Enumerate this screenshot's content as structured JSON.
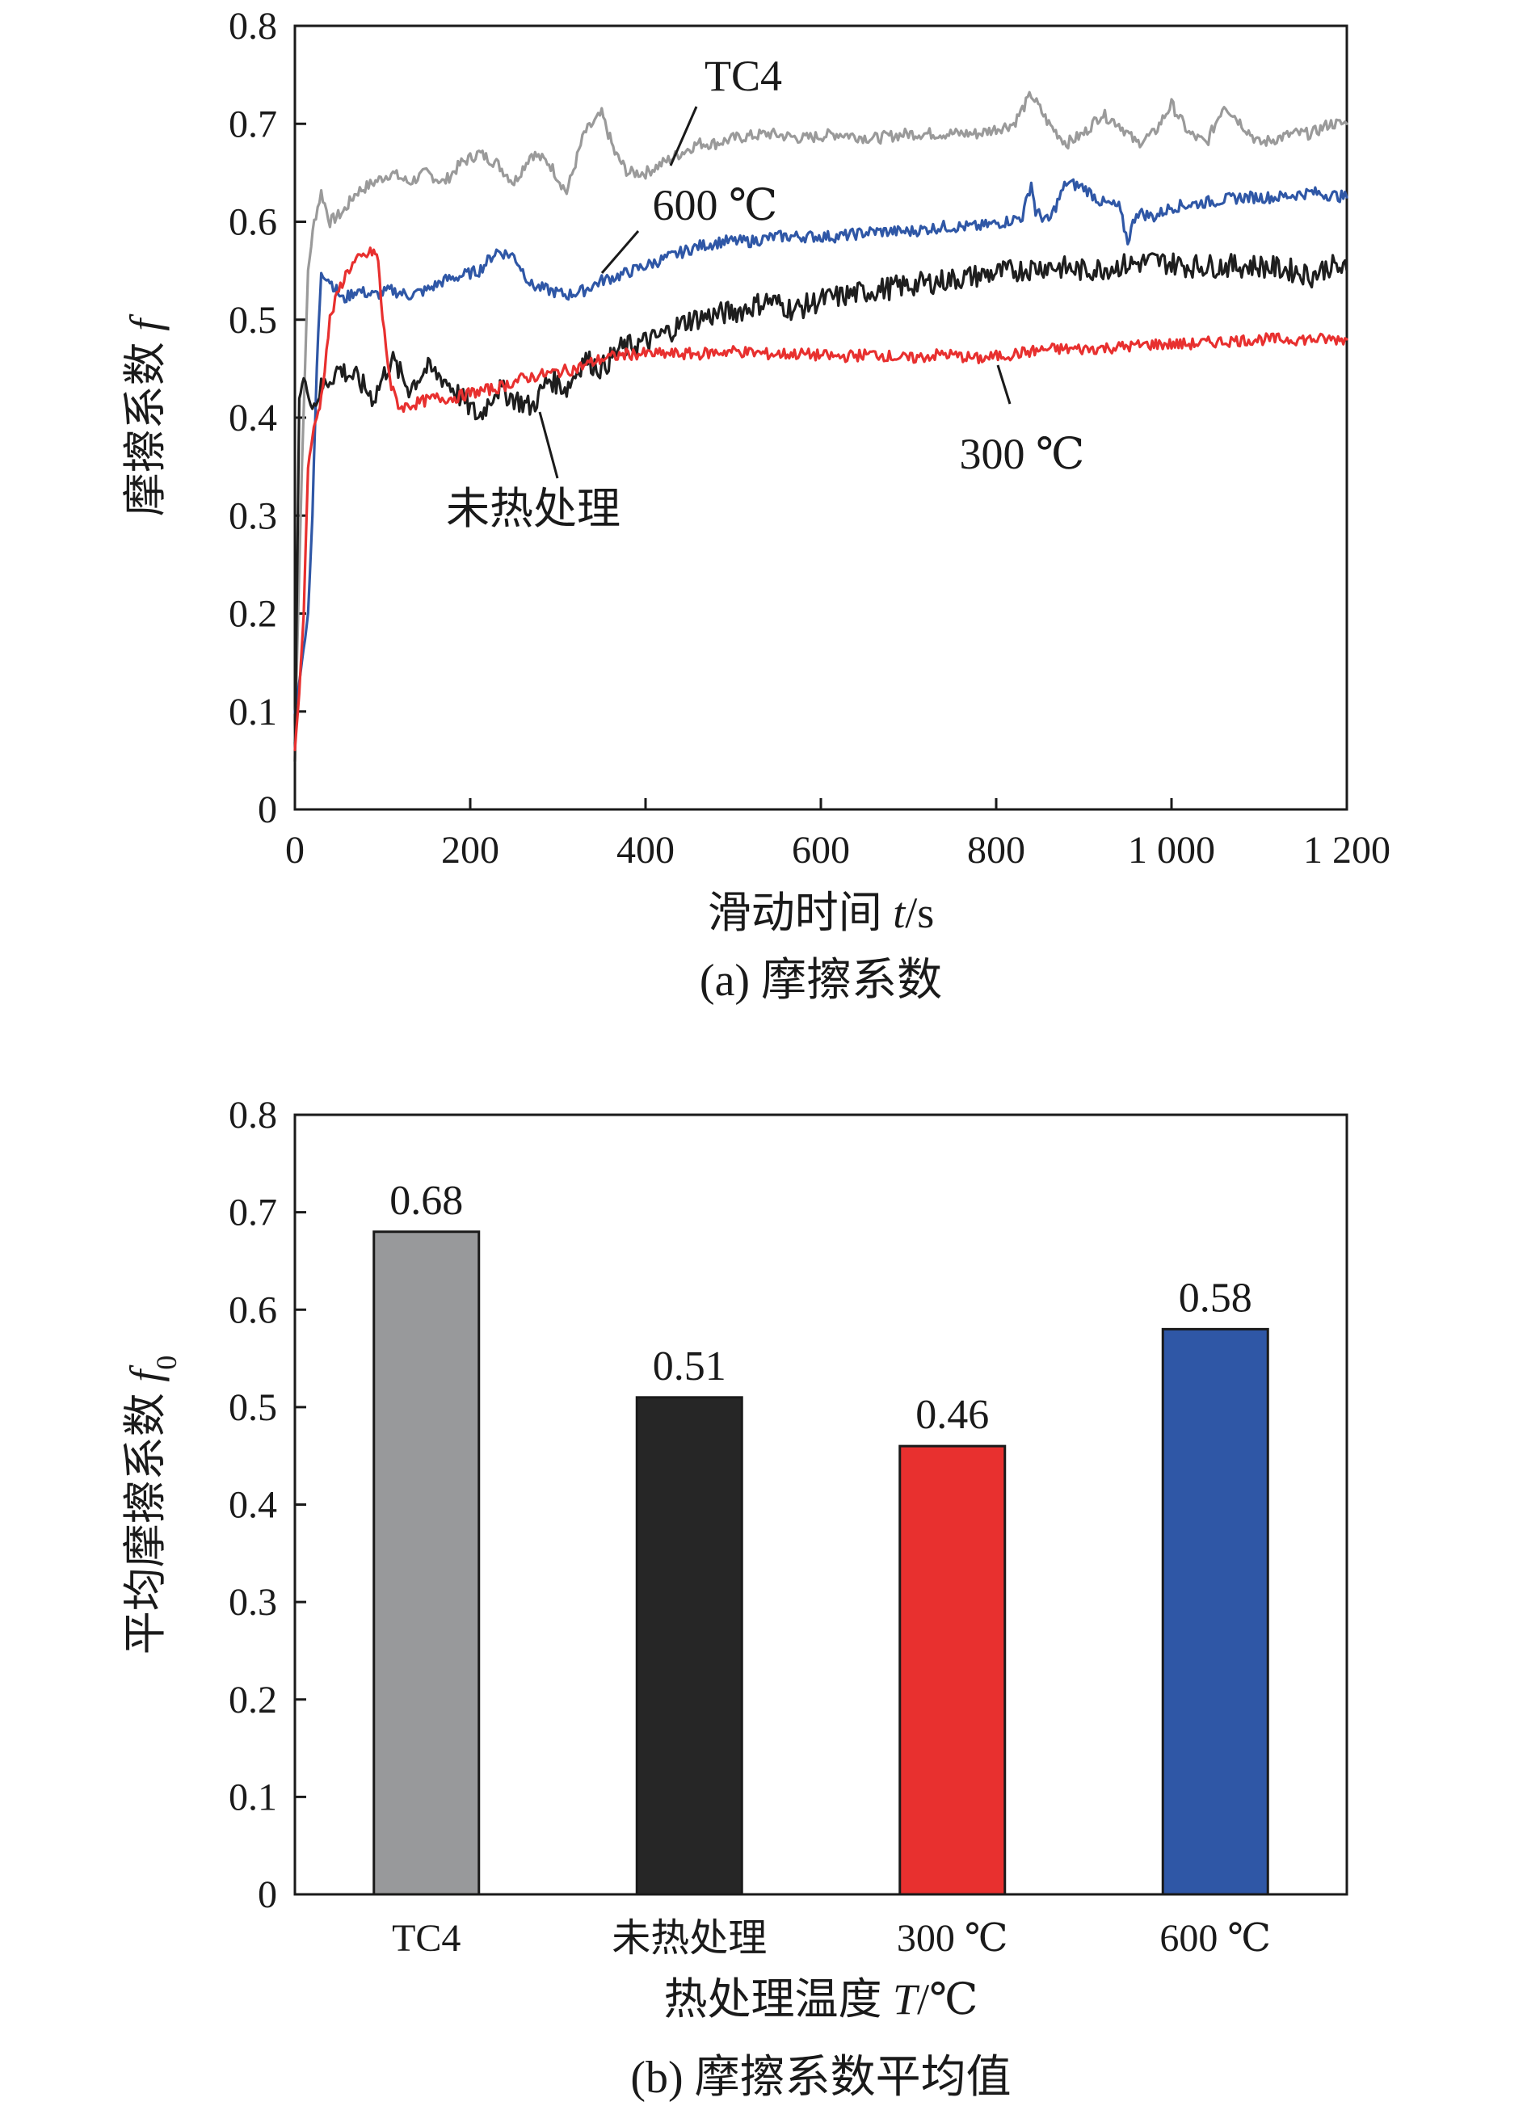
{
  "chart_data": [
    {
      "type": "line",
      "caption": "(a) 摩擦系数",
      "xlabel": "滑动时间 t/s",
      "ylabel": "摩擦系数 f",
      "xlim": [
        0,
        1200
      ],
      "ylim": [
        0,
        0.8
      ],
      "x_ticks": [
        "0",
        "200",
        "400",
        "600",
        "800",
        "1 000",
        "1 200"
      ],
      "y_ticks": [
        "0",
        "0.1",
        "0.2",
        "0.3",
        "0.4",
        "0.5",
        "0.6",
        "0.7",
        "0.8"
      ],
      "series": [
        {
          "name": "TC4",
          "color": "#9a9a9a",
          "x": [
            0,
            8,
            15,
            22,
            30,
            40,
            55,
            70,
            90,
            110,
            130,
            150,
            170,
            190,
            210,
            230,
            250,
            270,
            290,
            310,
            330,
            350,
            365,
            380,
            400,
            420,
            440,
            460,
            480,
            500,
            540,
            580,
            620,
            660,
            700,
            740,
            780,
            800,
            820,
            840,
            860,
            880,
            900,
            920,
            940,
            960,
            980,
            1000,
            1020,
            1040,
            1060,
            1080,
            1100,
            1120,
            1140,
            1160,
            1180,
            1200
          ],
          "y": [
            0.07,
            0.35,
            0.55,
            0.6,
            0.63,
            0.6,
            0.61,
            0.63,
            0.64,
            0.65,
            0.64,
            0.65,
            0.64,
            0.66,
            0.67,
            0.66,
            0.64,
            0.67,
            0.66,
            0.63,
            0.69,
            0.71,
            0.67,
            0.65,
            0.65,
            0.66,
            0.67,
            0.68,
            0.68,
            0.685,
            0.69,
            0.685,
            0.69,
            0.685,
            0.69,
            0.69,
            0.69,
            0.695,
            0.7,
            0.73,
            0.7,
            0.68,
            0.69,
            0.71,
            0.7,
            0.68,
            0.69,
            0.72,
            0.69,
            0.68,
            0.72,
            0.7,
            0.68,
            0.685,
            0.69,
            0.69,
            0.7,
            0.7
          ]
        },
        {
          "name": "600 ℃",
          "color": "#2f57a6",
          "x": [
            0,
            8,
            15,
            20,
            25,
            30,
            40,
            55,
            70,
            90,
            110,
            130,
            150,
            170,
            190,
            210,
            230,
            250,
            270,
            290,
            310,
            330,
            350,
            370,
            400,
            430,
            460,
            490,
            520,
            550,
            580,
            620,
            660,
            700,
            740,
            780,
            810,
            830,
            840,
            845,
            860,
            880,
            900,
            920,
            940,
            950,
            960,
            980,
            1000,
            1040,
            1080,
            1120,
            1160,
            1200
          ],
          "y": [
            0.1,
            0.15,
            0.2,
            0.3,
            0.45,
            0.55,
            0.54,
            0.52,
            0.53,
            0.525,
            0.53,
            0.525,
            0.53,
            0.54,
            0.545,
            0.55,
            0.57,
            0.565,
            0.535,
            0.53,
            0.525,
            0.53,
            0.54,
            0.545,
            0.555,
            0.565,
            0.575,
            0.58,
            0.58,
            0.585,
            0.585,
            0.585,
            0.59,
            0.59,
            0.595,
            0.595,
            0.6,
            0.605,
            0.64,
            0.61,
            0.6,
            0.64,
            0.635,
            0.62,
            0.615,
            0.58,
            0.61,
            0.605,
            0.615,
            0.62,
            0.625,
            0.625,
            0.63,
            0.625
          ]
        },
        {
          "name": "未热处理",
          "color": "#1e1e1e",
          "x": [
            0,
            5,
            10,
            20,
            30,
            50,
            70,
            90,
            110,
            130,
            150,
            170,
            190,
            210,
            230,
            250,
            270,
            290,
            310,
            330,
            350,
            370,
            390,
            410,
            430,
            450,
            480,
            510,
            540,
            570,
            600,
            630,
            660,
            700,
            740,
            780,
            820,
            860,
            900,
            940,
            980,
            1020,
            1060,
            1100,
            1140,
            1160,
            1180,
            1200
          ],
          "y": [
            0.05,
            0.42,
            0.44,
            0.41,
            0.43,
            0.45,
            0.44,
            0.42,
            0.46,
            0.43,
            0.45,
            0.44,
            0.42,
            0.4,
            0.43,
            0.42,
            0.41,
            0.44,
            0.43,
            0.46,
            0.45,
            0.47,
            0.475,
            0.48,
            0.49,
            0.5,
            0.505,
            0.51,
            0.52,
            0.51,
            0.52,
            0.525,
            0.53,
            0.535,
            0.54,
            0.545,
            0.55,
            0.555,
            0.55,
            0.555,
            0.56,
            0.555,
            0.555,
            0.555,
            0.55,
            0.545,
            0.555,
            0.55
          ]
        },
        {
          "name": "300 ℃",
          "color": "#e8302f",
          "x": [
            0,
            5,
            10,
            15,
            20,
            25,
            30,
            40,
            50,
            60,
            70,
            80,
            90,
            95,
            100,
            110,
            120,
            140,
            160,
            180,
            200,
            230,
            260,
            290,
            320,
            350,
            380,
            420,
            460,
            500,
            540,
            580,
            620,
            660,
            700,
            740,
            780,
            820,
            860,
            900,
            940,
            980,
            1020,
            1060,
            1100,
            1140,
            1180,
            1200
          ],
          "y": [
            0.06,
            0.12,
            0.2,
            0.35,
            0.38,
            0.4,
            0.42,
            0.5,
            0.53,
            0.55,
            0.56,
            0.565,
            0.57,
            0.56,
            0.5,
            0.43,
            0.41,
            0.415,
            0.42,
            0.42,
            0.425,
            0.43,
            0.44,
            0.445,
            0.45,
            0.46,
            0.465,
            0.465,
            0.465,
            0.468,
            0.465,
            0.465,
            0.462,
            0.465,
            0.46,
            0.465,
            0.46,
            0.465,
            0.47,
            0.47,
            0.472,
            0.475,
            0.475,
            0.478,
            0.48,
            0.48,
            0.48,
            0.48
          ]
        }
      ],
      "annotations": [
        {
          "text": "TC4",
          "series": "TC4"
        },
        {
          "text": "600 ℃",
          "series": "600 ℃"
        },
        {
          "text": "300 ℃",
          "series": "300 ℃"
        },
        {
          "text": "未热处理",
          "series": "未热处理"
        }
      ]
    },
    {
      "type": "bar",
      "caption": "(b) 摩擦系数平均值",
      "xlabel": "热处理温度 T/℃",
      "ylabel": "平均摩擦系数 f0",
      "ylim": [
        0,
        0.8
      ],
      "y_ticks": [
        "0",
        "0.1",
        "0.2",
        "0.3",
        "0.4",
        "0.5",
        "0.6",
        "0.7",
        "0.8"
      ],
      "categories": [
        "TC4",
        "未热处理",
        "300 ℃",
        "600 ℃"
      ],
      "values": [
        0.68,
        0.51,
        0.46,
        0.58
      ],
      "value_labels": [
        "0.68",
        "0.51",
        "0.46",
        "0.58"
      ],
      "colors": [
        "#98999b",
        "#262626",
        "#e8302f",
        "#2f57a6"
      ]
    }
  ]
}
